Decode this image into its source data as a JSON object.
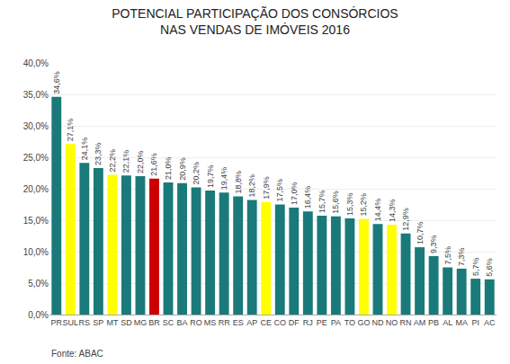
{
  "chart_data": {
    "type": "bar",
    "title": "POTENCIAL PARTICIPAÇÃO DOS CONSÓRCIOS\nNAS VENDAS DE IMÓVEIS 2016",
    "categories": [
      "PR",
      "SUL",
      "RS",
      "SP",
      "MT",
      "SD",
      "MG",
      "BR",
      "SC",
      "BA",
      "RO",
      "MS",
      "RR",
      "ES",
      "AP",
      "CE",
      "CO",
      "DF",
      "RJ",
      "PE",
      "PA",
      "TO",
      "GO",
      "ND",
      "NO",
      "RN",
      "AM",
      "PB",
      "AL",
      "MA",
      "PI",
      "AC"
    ],
    "values": [
      34.6,
      27.1,
      24.1,
      23.3,
      22.2,
      22.1,
      22.0,
      21.6,
      21.0,
      20.9,
      20.2,
      19.7,
      19.4,
      18.8,
      18.2,
      17.9,
      17.5,
      17.0,
      16.4,
      15.7,
      15.6,
      15.3,
      15.2,
      14.4,
      14.3,
      12.9,
      10.7,
      9.3,
      7.5,
      7.3,
      5.7,
      5.6
    ],
    "value_labels": [
      "34,6%",
      "27,1%",
      "24,1%",
      "23,3%",
      "22,2%",
      "22,1%",
      "22,0%",
      "21,6%",
      "21,0%",
      "20,9%",
      "20,2%",
      "19,7%",
      "19,4%",
      "18,8%",
      "18,2%",
      "17,9%",
      "17,5%",
      "17,0%",
      "16,4%",
      "15,7%",
      "15,6%",
      "15,3%",
      "15,2%",
      "14,4%",
      "14,3%",
      "12,9%",
      "10,7%",
      "9,3%",
      "7,5%",
      "7,3%",
      "5,7%",
      "5,6%"
    ],
    "data_labels": true,
    "colors": [
      "#1a7a7a",
      "#ffff00",
      "#1a7a7a",
      "#1a7a7a",
      "#ffff00",
      "#1a7a7a",
      "#1a7a7a",
      "#cc0000",
      "#1a7a7a",
      "#1a7a7a",
      "#1a7a7a",
      "#1a7a7a",
      "#1a7a7a",
      "#1a7a7a",
      "#1a7a7a",
      "#ffff00",
      "#1a7a7a",
      "#1a7a7a",
      "#1a7a7a",
      "#1a7a7a",
      "#1a7a7a",
      "#1a7a7a",
      "#ffff00",
      "#1a7a7a",
      "#ffff00",
      "#1a7a7a",
      "#1a7a7a",
      "#1a7a7a",
      "#1a7a7a",
      "#1a7a7a",
      "#1a7a7a",
      "#1a7a7a"
    ],
    "ylim": [
      0,
      40
    ],
    "yticks": [
      {
        "value": 0,
        "label": "0,0%"
      },
      {
        "value": 5,
        "label": "5,0%"
      },
      {
        "value": 10,
        "label": "10,0%"
      },
      {
        "value": 15,
        "label": "15,0%"
      },
      {
        "value": 20,
        "label": "20,0%"
      },
      {
        "value": 25,
        "label": "25,0%"
      },
      {
        "value": 30,
        "label": "30,0%"
      },
      {
        "value": 35,
        "label": "35,0%"
      },
      {
        "value": 40,
        "label": "40,0%"
      }
    ],
    "grid": true,
    "annotations": [
      "Fonte: ABAC"
    ]
  }
}
